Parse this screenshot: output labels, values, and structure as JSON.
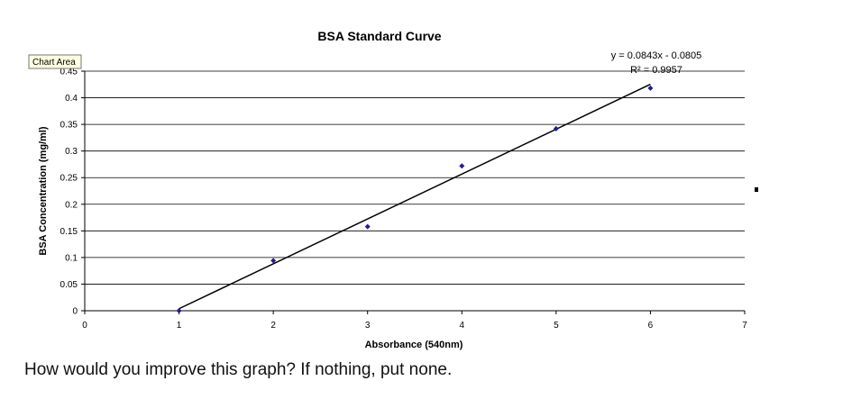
{
  "chart_data": {
    "type": "scatter",
    "title": "BSA Standard Curve",
    "xlabel": "Absorbance (540nm)",
    "ylabel": "BSA Concentration (mg/ml)",
    "xlim": [
      0,
      7
    ],
    "ylim": [
      0,
      0.45
    ],
    "xticks": [
      "0",
      "1",
      "2",
      "3",
      "4",
      "5",
      "6",
      "7"
    ],
    "yticks": [
      "0",
      "0.05",
      "0.1",
      "0.15",
      "0.2",
      "0.25",
      "0.3",
      "0.35",
      "0.4",
      "0.45"
    ],
    "grid": true,
    "series": [
      {
        "points": [
          {
            "x": 1,
            "y": 0.0
          },
          {
            "x": 2,
            "y": 0.094
          },
          {
            "x": 3,
            "y": 0.158
          },
          {
            "x": 4,
            "y": 0.272
          },
          {
            "x": 5,
            "y": 0.342
          },
          {
            "x": 6,
            "y": 0.418
          }
        ],
        "color": "#1f1f8f"
      }
    ],
    "trendline": {
      "slope": 0.0843,
      "intercept": -0.0805,
      "x_range": [
        1,
        6
      ],
      "color": "#000000"
    },
    "equation": "y = 0.0843x - 0.0805",
    "r2_text": "R² = 0.9957",
    "tooltip": "Chart Area"
  },
  "question": "How would you improve this graph? If nothing, put none."
}
